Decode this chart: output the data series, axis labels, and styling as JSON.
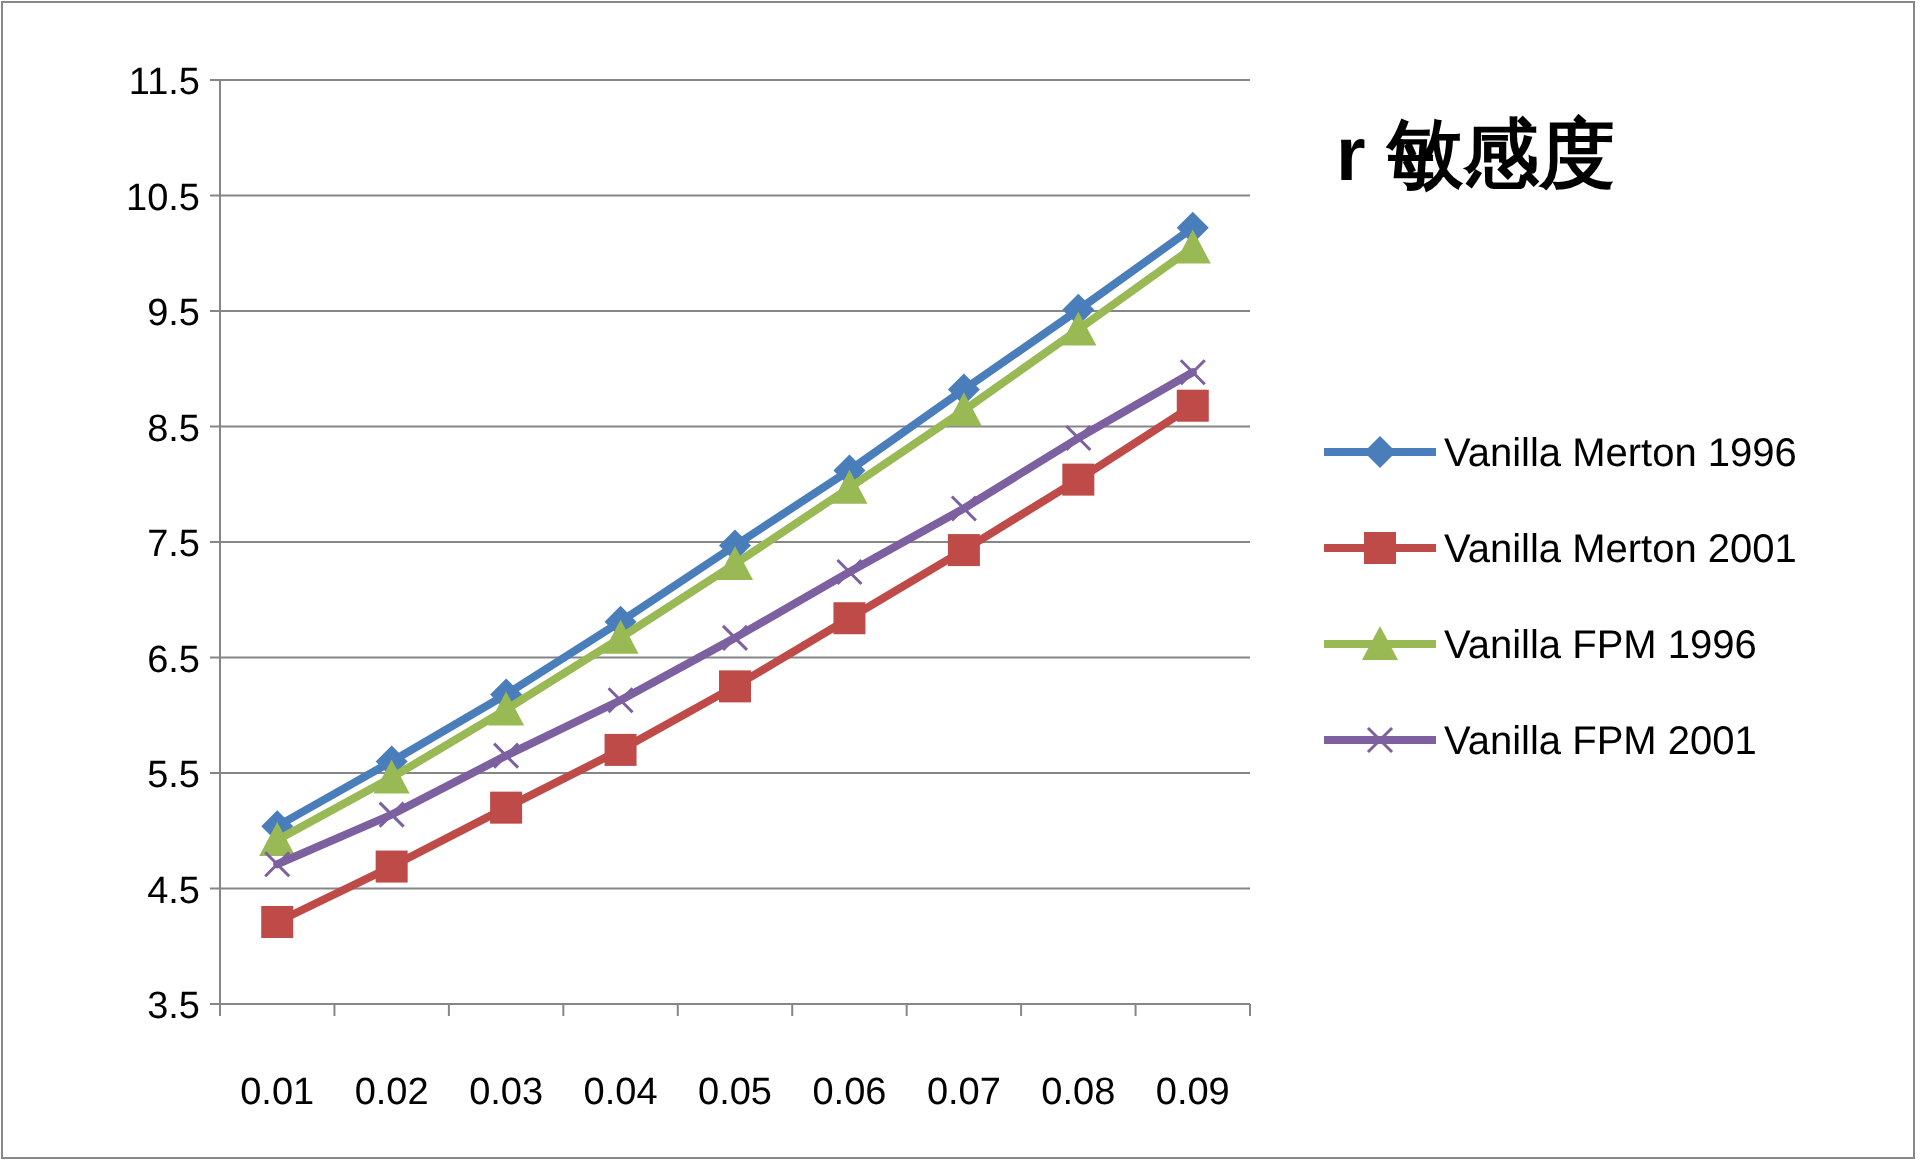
{
  "chart_data": {
    "type": "line",
    "title": "r 敏感度",
    "categories": [
      "0.01",
      "0.02",
      "0.03",
      "0.04",
      "0.05",
      "0.06",
      "0.07",
      "0.08",
      "0.09"
    ],
    "ylim": [
      3.5,
      11.5
    ],
    "yticks": [
      3.5,
      4.5,
      5.5,
      6.5,
      7.5,
      8.5,
      9.5,
      10.5,
      11.5
    ],
    "grid": "y",
    "legend": "right",
    "line_style": "solid",
    "series": [
      {
        "name": "Vanilla Merton 1996",
        "color": "#4a7ebb",
        "marker": "diamond",
        "values": [
          5.04,
          5.6,
          6.18,
          6.81,
          7.47,
          8.12,
          8.82,
          9.51,
          10.22
        ]
      },
      {
        "name": "Vanilla Merton 2001",
        "color": "#be4b48",
        "marker": "square",
        "values": [
          4.21,
          4.69,
          5.2,
          5.7,
          6.25,
          6.84,
          7.43,
          8.04,
          8.68
        ]
      },
      {
        "name": "Vanilla FPM 1996",
        "color": "#98b954",
        "marker": "triangle",
        "values": [
          4.92,
          5.46,
          6.05,
          6.67,
          7.31,
          7.97,
          8.64,
          9.34,
          10.05
        ]
      },
      {
        "name": "Vanilla FPM 2001",
        "color": "#7d60a0",
        "marker": "cross",
        "values": [
          4.71,
          5.14,
          5.65,
          6.13,
          6.67,
          7.24,
          7.79,
          8.4,
          8.97
        ]
      }
    ]
  }
}
